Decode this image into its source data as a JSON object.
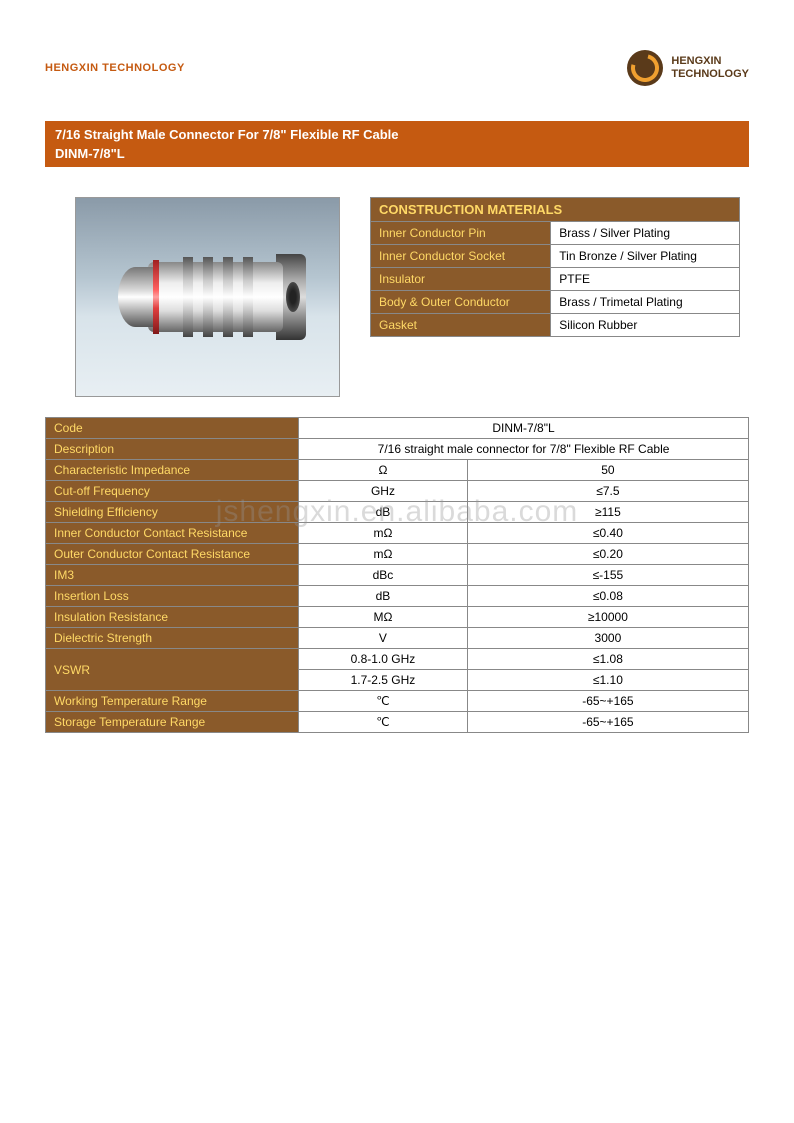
{
  "header": {
    "company_name": "HENGXIN TECHNOLOGY",
    "logo_line1": "HENGXIN",
    "logo_line2": "TECHNOLOGY"
  },
  "title": {
    "line1": "7/16 Straight Male Connector For 7/8\" Flexible RF Cable",
    "line2": "DINM-7/8\"L"
  },
  "materials": {
    "header": "CONSTRUCTION MATERIALS",
    "rows": [
      {
        "label": "Inner Conductor Pin",
        "value": "Brass / Silver Plating"
      },
      {
        "label": "Inner Conductor Socket",
        "value": "Tin Bronze / Silver Plating"
      },
      {
        "label": "Insulator",
        "value": "PTFE"
      },
      {
        "label": "Body & Outer Conductor",
        "value": "Brass / Trimetal Plating"
      },
      {
        "label": "Gasket",
        "value": "Silicon Rubber"
      }
    ]
  },
  "specs": {
    "rows": [
      {
        "label": "Code",
        "unit": "DINM-7/8\"L",
        "value": null,
        "colspan": 2
      },
      {
        "label": "Description",
        "unit": "7/16 straight male connector for 7/8\" Flexible RF Cable",
        "value": null,
        "colspan": 2
      },
      {
        "label": "Characteristic Impedance",
        "unit": "Ω",
        "value": "50"
      },
      {
        "label": "Cut-off Frequency",
        "unit": "GHz",
        "value": "≤7.5"
      },
      {
        "label": "Shielding Efficiency",
        "unit": "dB",
        "value": "≥115"
      },
      {
        "label": "Inner Conductor Contact Resistance",
        "unit": "mΩ",
        "value": "≤0.40"
      },
      {
        "label": "Outer Conductor Contact Resistance",
        "unit": "mΩ",
        "value": "≤0.20"
      },
      {
        "label": "IM3",
        "unit": "dBc",
        "value": "≤-155"
      },
      {
        "label": "Insertion Loss",
        "unit": "dB",
        "value": "≤0.08"
      },
      {
        "label": "Insulation Resistance",
        "unit": "MΩ",
        "value": "≥10000"
      },
      {
        "label": "Dielectric Strength",
        "unit": "V",
        "value": "3000"
      },
      {
        "label": "VSWR",
        "unit": "0.8-1.0 GHz",
        "value": "≤1.08",
        "rowspan": 2
      },
      {
        "label": null,
        "unit": "1.7-2.5 GHz",
        "value": "≤1.10"
      },
      {
        "label": "Working Temperature Range",
        "unit": "℃",
        "value": "-65~+165"
      },
      {
        "label": "Storage Temperature Range",
        "unit": "℃",
        "value": "-65~+165"
      }
    ]
  },
  "watermark": "jshengxin.en.alibaba.com",
  "colors": {
    "brand_orange": "#c55a11",
    "table_header_bg": "#8a5a2a",
    "table_header_text": "#ffd966",
    "border": "#888888",
    "logo_dark": "#5a3a1a",
    "logo_accent": "#f0a030"
  }
}
